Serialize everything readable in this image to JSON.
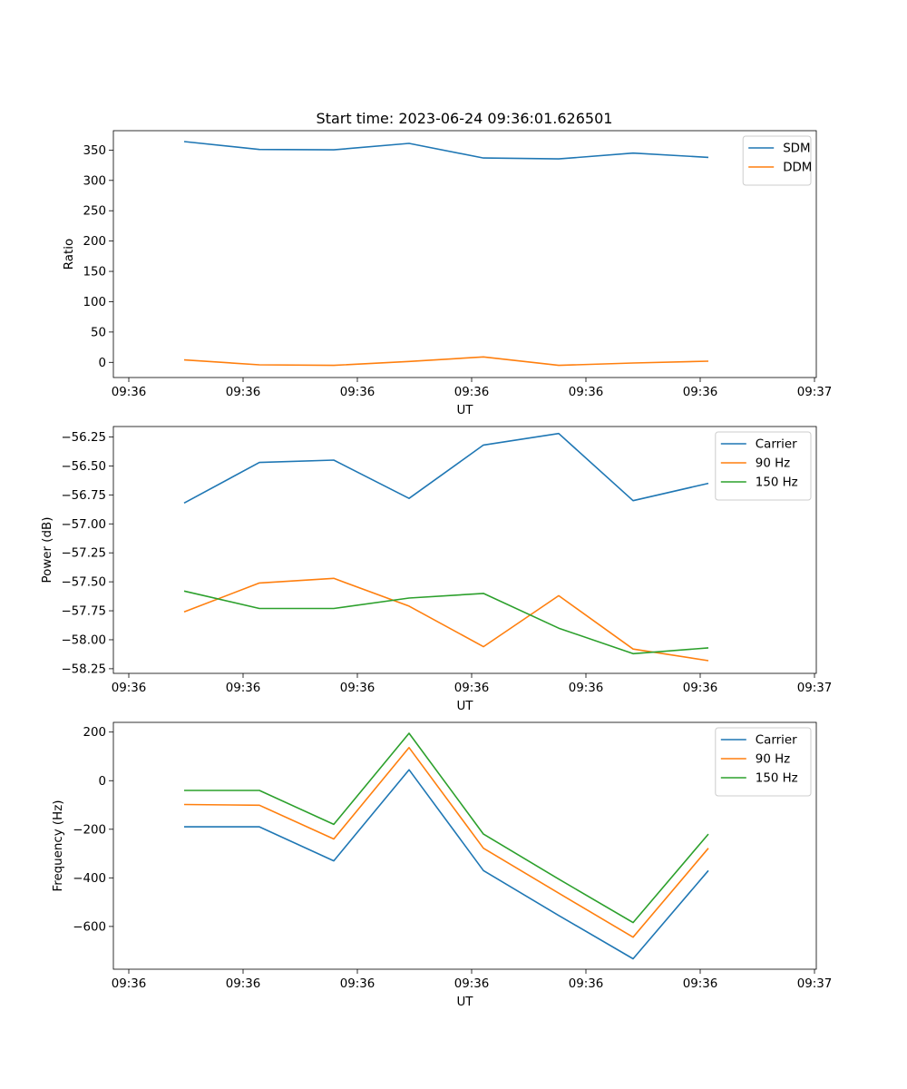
{
  "figure_title": "Start time: 2023-06-24 09:36:01.626501",
  "colors": {
    "blue": "#1f77b4",
    "orange": "#ff7f0e",
    "green": "#2ca02c"
  },
  "chart_data": [
    {
      "type": "line",
      "xlabel": "UT",
      "ylabel": "Ratio",
      "x_tick_labels": [
        "09:36",
        "09:36",
        "09:36",
        "09:36",
        "09:36",
        "09:36",
        "09:37"
      ],
      "ylim": [
        -25,
        382
      ],
      "yticks": [
        0,
        50,
        100,
        150,
        200,
        250,
        300,
        350
      ],
      "ytick_labels": [
        "0",
        "50",
        "100",
        "150",
        "200",
        "250",
        "300",
        "350"
      ],
      "legend": "top-right",
      "series": [
        {
          "name": "SDM",
          "color": "#1f77b4",
          "values": [
            364,
            351,
            350.5,
            361,
            337,
            335.5,
            345,
            338
          ]
        },
        {
          "name": "DDM",
          "color": "#ff7f0e",
          "values": [
            4,
            -4,
            -5,
            1.5,
            9,
            -5,
            -1,
            2
          ]
        }
      ]
    },
    {
      "type": "line",
      "xlabel": "UT",
      "ylabel": "Power (dB)",
      "x_tick_labels": [
        "09:36",
        "09:36",
        "09:36",
        "09:36",
        "09:36",
        "09:36",
        "09:37"
      ],
      "ylim": [
        -58.29,
        -56.16
      ],
      "yticks": [
        -56.25,
        -56.5,
        -56.75,
        -57.0,
        -57.25,
        -57.5,
        -57.75,
        -58.0,
        -58.25
      ],
      "ytick_labels": [
        "−56.25",
        "−56.50",
        "−56.75",
        "−57.00",
        "−57.25",
        "−57.50",
        "−57.75",
        "−58.00",
        "−58.25"
      ],
      "legend": "top-right",
      "series": [
        {
          "name": "Carrier",
          "color": "#1f77b4",
          "values": [
            -56.82,
            -56.47,
            -56.45,
            -56.78,
            -56.32,
            -56.22,
            -56.8,
            -56.65
          ]
        },
        {
          "name": "90 Hz",
          "color": "#ff7f0e",
          "values": [
            -57.76,
            -57.51,
            -57.47,
            -57.71,
            -58.06,
            -57.62,
            -58.08,
            -58.18
          ]
        },
        {
          "name": "150 Hz",
          "color": "#2ca02c",
          "values": [
            -57.58,
            -57.73,
            -57.73,
            -57.64,
            -57.6,
            -57.9,
            -58.12,
            -58.07
          ]
        }
      ]
    },
    {
      "type": "line",
      "xlabel": "UT",
      "ylabel": "Frequency (Hz)",
      "x_tick_labels": [
        "09:36",
        "09:36",
        "09:36",
        "09:36",
        "09:36",
        "09:36",
        "09:37"
      ],
      "ylim": [
        -776,
        240
      ],
      "yticks": [
        200,
        0,
        -200,
        -400,
        -600
      ],
      "ytick_labels": [
        "200",
        "0",
        "−200",
        "−400",
        "−600"
      ],
      "legend": "top-right",
      "series": [
        {
          "name": "Carrier",
          "color": "#1f77b4",
          "values": [
            -190,
            -190,
            -330,
            45,
            -370,
            -555,
            -733,
            -370
          ]
        },
        {
          "name": "90 Hz",
          "color": "#ff7f0e",
          "values": [
            -98,
            -101,
            -240,
            136,
            -278,
            -463,
            -644,
            -278
          ]
        },
        {
          "name": "150 Hz",
          "color": "#2ca02c",
          "values": [
            -40,
            -40,
            -180,
            195,
            -220,
            -405,
            -584,
            -220
          ]
        }
      ]
    }
  ]
}
